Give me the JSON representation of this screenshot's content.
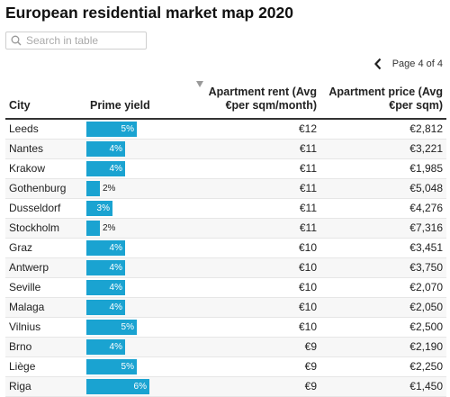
{
  "title": "European residential market map 2020",
  "search": {
    "placeholder": "Search in table",
    "value": ""
  },
  "pager": {
    "label": "Page 4 of 4"
  },
  "columns": {
    "city": "City",
    "yield": "Prime yield",
    "rent": "Apartment rent (Avg €per sqm/month)",
    "price": "Apartment price (Avg €per sqm)"
  },
  "yield_scale_max": 6,
  "colors": {
    "bar": "#1aa3d1"
  },
  "rows": [
    {
      "city": "Leeds",
      "yield": 5,
      "yield_label": "5%",
      "rent": "€12",
      "price": "€2,812"
    },
    {
      "city": "Nantes",
      "yield": 4,
      "yield_label": "4%",
      "rent": "€11",
      "price": "€3,221"
    },
    {
      "city": "Krakow",
      "yield": 4,
      "yield_label": "4%",
      "rent": "€11",
      "price": "€1,985"
    },
    {
      "city": "Gothenburg",
      "yield": 2,
      "yield_label": "2%",
      "rent": "€11",
      "price": "€5,048"
    },
    {
      "city": "Dusseldorf",
      "yield": 3,
      "yield_label": "3%",
      "rent": "€11",
      "price": "€4,276"
    },
    {
      "city": "Stockholm",
      "yield": 2,
      "yield_label": "2%",
      "rent": "€11",
      "price": "€7,316"
    },
    {
      "city": "Graz",
      "yield": 4,
      "yield_label": "4%",
      "rent": "€10",
      "price": "€3,451"
    },
    {
      "city": "Antwerp",
      "yield": 4,
      "yield_label": "4%",
      "rent": "€10",
      "price": "€3,750"
    },
    {
      "city": "Seville",
      "yield": 4,
      "yield_label": "4%",
      "rent": "€10",
      "price": "€2,070"
    },
    {
      "city": "Malaga",
      "yield": 4,
      "yield_label": "4%",
      "rent": "€10",
      "price": "€2,050"
    },
    {
      "city": "Vilnius",
      "yield": 5,
      "yield_label": "5%",
      "rent": "€10",
      "price": "€2,500"
    },
    {
      "city": "Brno",
      "yield": 4,
      "yield_label": "4%",
      "rent": "€9",
      "price": "€2,190"
    },
    {
      "city": "Liège",
      "yield": 5,
      "yield_label": "5%",
      "rent": "€9",
      "price": "€2,250"
    },
    {
      "city": "Riga",
      "yield": 6,
      "yield_label": "6%",
      "rent": "€9",
      "price": "€1,450"
    }
  ]
}
